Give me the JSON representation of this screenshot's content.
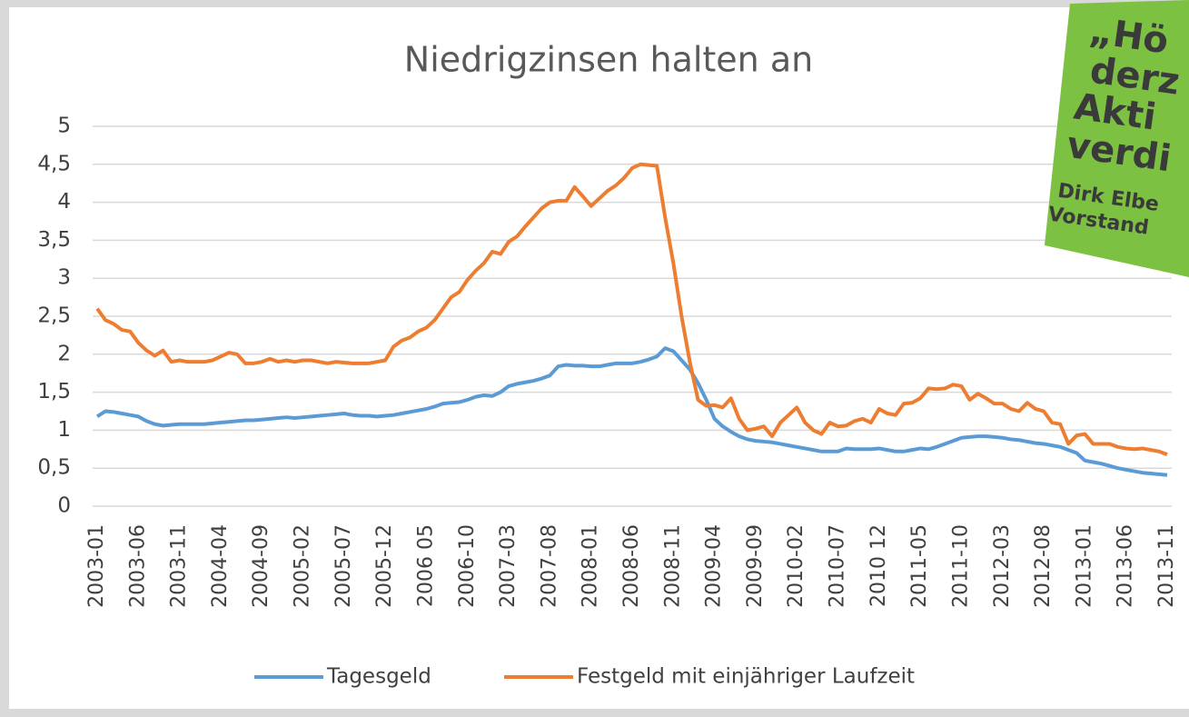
{
  "chart_data": {
    "type": "line",
    "title": "Niedrigzinsen halten an",
    "categories": [
      "2003-01",
      null,
      null,
      null,
      null,
      "2003-06",
      null,
      null,
      null,
      null,
      "2003-11",
      null,
      null,
      null,
      null,
      "2004-04",
      null,
      null,
      null,
      null,
      "2004-09",
      null,
      null,
      null,
      null,
      "2005-02",
      null,
      null,
      null,
      null,
      "2005-07",
      null,
      null,
      null,
      null,
      "2005-12",
      null,
      null,
      null,
      null,
      "2006 05",
      null,
      null,
      null,
      null,
      "2006-10",
      null,
      null,
      null,
      null,
      "2007-03",
      null,
      null,
      null,
      null,
      "2007-08",
      null,
      null,
      null,
      null,
      "2008-01",
      null,
      null,
      null,
      null,
      "2008-06",
      null,
      null,
      null,
      null,
      "2008-11",
      null,
      null,
      null,
      null,
      "2009-04",
      null,
      null,
      null,
      null,
      "2009-09",
      null,
      null,
      null,
      null,
      "2010-02",
      null,
      null,
      null,
      null,
      "2010-07",
      null,
      null,
      null,
      null,
      "2010 12",
      null,
      null,
      null,
      null,
      "2011-05",
      null,
      null,
      null,
      null,
      "2011-10",
      null,
      null,
      null,
      null,
      "2012-03",
      null,
      null,
      null,
      null,
      "2012-08",
      null,
      null,
      null,
      null,
      "2013-01",
      null,
      null,
      null,
      null,
      "2013-06",
      null,
      null,
      null,
      null,
      "2013-11"
    ],
    "series": [
      {
        "name": "Tagesgeld",
        "color": "#5b9bd5",
        "values": [
          1.18,
          1.25,
          1.24,
          1.22,
          1.2,
          1.18,
          1.12,
          1.08,
          1.06,
          1.07,
          1.08,
          1.08,
          1.08,
          1.08,
          1.09,
          1.1,
          1.11,
          1.12,
          1.13,
          1.13,
          1.14,
          1.15,
          1.16,
          1.17,
          1.16,
          1.17,
          1.18,
          1.19,
          1.2,
          1.21,
          1.22,
          1.2,
          1.19,
          1.19,
          1.18,
          1.19,
          1.2,
          1.22,
          1.24,
          1.26,
          1.28,
          1.31,
          1.35,
          1.36,
          1.37,
          1.4,
          1.44,
          1.46,
          1.45,
          1.5,
          1.58,
          1.61,
          1.63,
          1.65,
          1.68,
          1.72,
          1.84,
          1.86,
          1.85,
          1.85,
          1.84,
          1.84,
          1.86,
          1.88,
          1.88,
          1.88,
          1.9,
          1.93,
          1.97,
          2.08,
          2.04,
          1.92,
          1.8,
          1.62,
          1.4,
          1.15,
          1.05,
          0.98,
          0.92,
          0.88,
          0.86,
          0.85,
          0.84,
          0.82,
          0.8,
          0.78,
          0.76,
          0.74,
          0.72,
          0.72,
          0.72,
          0.76,
          0.75,
          0.75,
          0.75,
          0.76,
          0.74,
          0.72,
          0.72,
          0.74,
          0.76,
          0.75,
          0.78,
          0.82,
          0.86,
          0.9,
          0.91,
          0.92,
          0.92,
          0.91,
          0.9,
          0.88,
          0.87,
          0.85,
          0.83,
          0.82,
          0.8,
          0.78,
          0.74,
          0.7,
          0.6,
          0.58,
          0.56,
          0.53,
          0.5,
          0.48,
          0.46,
          0.44,
          0.43,
          0.42,
          0.41
        ]
      },
      {
        "name": "Festgeld mit einjähriger Laufzeit",
        "color": "#ed7d31",
        "values": [
          2.6,
          2.45,
          2.4,
          2.32,
          2.3,
          2.15,
          2.05,
          1.98,
          2.05,
          1.9,
          1.92,
          1.9,
          1.9,
          1.9,
          1.92,
          1.97,
          2.02,
          2.0,
          1.88,
          1.88,
          1.9,
          1.94,
          1.9,
          1.92,
          1.9,
          1.92,
          1.92,
          1.9,
          1.88,
          1.9,
          1.89,
          1.88,
          1.88,
          1.88,
          1.9,
          1.92,
          2.1,
          2.18,
          2.22,
          2.3,
          2.35,
          2.45,
          2.6,
          2.75,
          2.82,
          2.98,
          3.1,
          3.2,
          3.35,
          3.32,
          3.48,
          3.55,
          3.68,
          3.8,
          3.92,
          4.0,
          4.02,
          4.02,
          4.2,
          4.08,
          3.95,
          4.05,
          4.15,
          4.22,
          4.32,
          4.45,
          4.5,
          4.49,
          4.48,
          3.8,
          3.2,
          2.5,
          1.9,
          1.4,
          1.32,
          1.33,
          1.3,
          1.42,
          1.15,
          1.0,
          1.02,
          1.05,
          0.92,
          1.1,
          1.2,
          1.3,
          1.1,
          1.0,
          0.95,
          1.1,
          1.05,
          1.06,
          1.12,
          1.15,
          1.1,
          1.28,
          1.22,
          1.2,
          1.35,
          1.36,
          1.42,
          1.55,
          1.54,
          1.55,
          1.6,
          1.58,
          1.4,
          1.48,
          1.42,
          1.35,
          1.35,
          1.28,
          1.25,
          1.36,
          1.28,
          1.25,
          1.1,
          1.08,
          0.82,
          0.93,
          0.95,
          0.82,
          0.82,
          0.82,
          0.78,
          0.76,
          0.75,
          0.76,
          0.74,
          0.72,
          0.68
        ]
      }
    ],
    "ylim": [
      0,
      5
    ],
    "yticks": [
      0,
      {
        "value": 0.5,
        "label": "0,5"
      },
      1,
      {
        "value": 1.5,
        "label": "1,5"
      },
      2,
      {
        "value": 2.5,
        "label": "2,5"
      },
      3,
      {
        "value": 3.5,
        "label": "3,5"
      },
      4,
      {
        "value": 4.5,
        "label": "4,5"
      },
      5
    ],
    "grid": true,
    "legend": "bottom"
  },
  "sticker": {
    "lines": [
      "„Hö",
      "derz",
      "Akti",
      "verdi",
      "Dirk Elbe",
      "Vorstand"
    ]
  }
}
